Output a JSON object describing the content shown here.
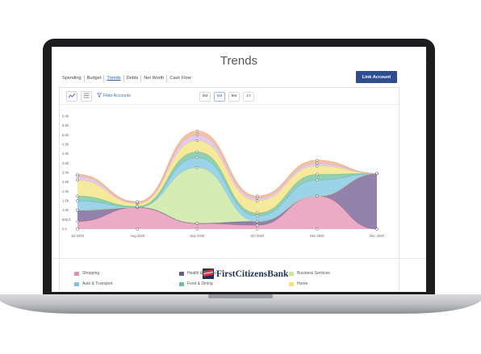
{
  "window": {
    "title": "Trends",
    "close_glyph": "✕"
  },
  "tabs": [
    {
      "label": "Spending",
      "active": false
    },
    {
      "label": "Budget",
      "active": false
    },
    {
      "label": "Trends",
      "active": true
    },
    {
      "label": "Debts",
      "active": false
    },
    {
      "label": "Net Worth",
      "active": false
    },
    {
      "label": "Cash Flow",
      "active": false
    }
  ],
  "actions": {
    "link_account": "Link Account"
  },
  "toolbar": {
    "chart_icon": "line-chart-icon",
    "list_icon": "list-icon",
    "filter_label": "Filter Accounts",
    "periods": [
      "3M",
      "6M",
      "9M",
      "1Y"
    ],
    "active_period": "6M"
  },
  "chart_data": {
    "type": "area",
    "stacked": true,
    "x": [
      "Jul 2020",
      "Aug 2020",
      "Sep 2020",
      "Oct 2020",
      "Nov 2020",
      "Dec 2020"
    ],
    "y_ticks": [
      "0.0",
      "500.0",
      "1.0k",
      "1.5k",
      "2.0k",
      "2.5k",
      "3.0k",
      "3.5k",
      "4.0k",
      "4.5k",
      "5.0k",
      "5.5k",
      "6.0k"
    ],
    "ylim": [
      0,
      6000
    ],
    "grid": false,
    "series": [
      {
        "name": "Shopping",
        "color": "#e58fb0",
        "values": [
          400,
          1150,
          300,
          200,
          1750,
          0
        ]
      },
      {
        "name": "Health & Fitness",
        "color": "#6f5a8f",
        "values": [
          600,
          0,
          0,
          200,
          0,
          2950
        ]
      },
      {
        "name": "Business Services",
        "color": "#c7e79b",
        "values": [
          0,
          0,
          2950,
          0,
          0,
          0
        ]
      },
      {
        "name": "Auto & Transport",
        "color": "#7cc4e2",
        "values": [
          500,
          0,
          550,
          300,
          850,
          0
        ]
      },
      {
        "name": "Food & Dining",
        "color": "#6fbf9a",
        "values": [
          250,
          50,
          300,
          150,
          300,
          0
        ]
      },
      {
        "name": "Home",
        "color": "#f4e27a",
        "values": [
          850,
          150,
          600,
          650,
          450,
          0
        ]
      },
      {
        "name": "",
        "color": "#d8b8e6",
        "values": [
          200,
          50,
          300,
          150,
          150,
          0
        ]
      },
      {
        "name": "",
        "color": "#f3b07e",
        "values": [
          100,
          50,
          200,
          100,
          150,
          0
        ]
      }
    ],
    "totals": [
      2900,
      1450,
      5200,
      1750,
      3650,
      2950
    ]
  },
  "footer": {
    "bank_name": "FirstCitizensBank",
    "logo_icon": "bank-flag-logo-icon"
  }
}
